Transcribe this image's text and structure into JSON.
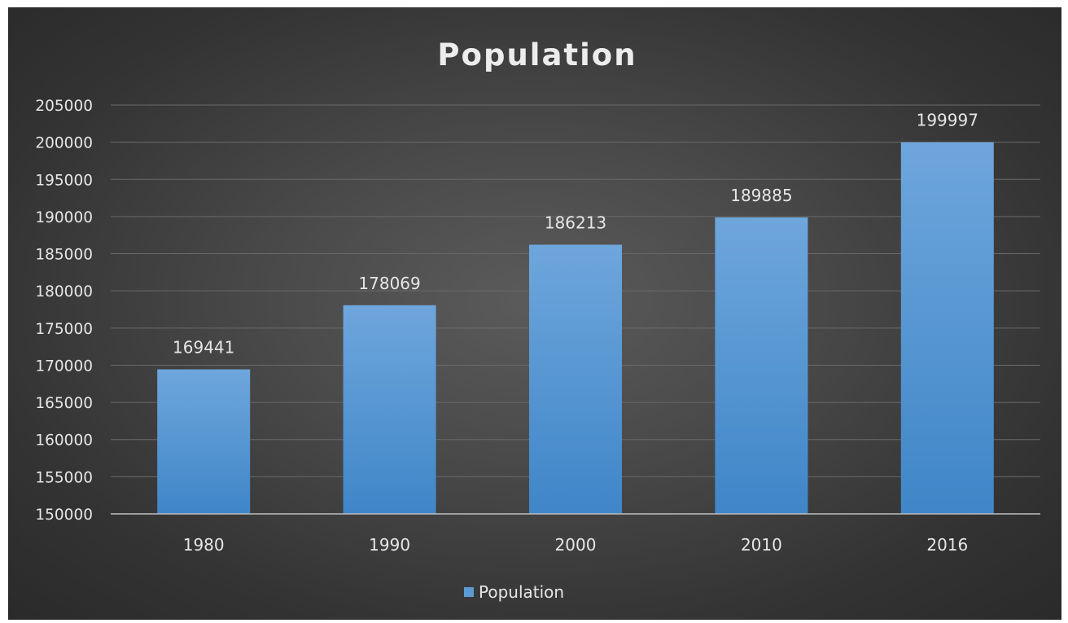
{
  "chart_data": {
    "type": "bar",
    "title": "Population",
    "categories": [
      "1980",
      "1990",
      "2000",
      "2010",
      "2016"
    ],
    "series": [
      {
        "name": "Population",
        "values": [
          169441,
          178069,
          186213,
          189885,
          199997
        ],
        "color": "#5b9bd5"
      }
    ],
    "ylim": [
      150000,
      205000
    ],
    "ytick_step": 5000,
    "grid": true,
    "legend_position": "bottom",
    "data_labels": true,
    "background": "#3c3c3c"
  }
}
